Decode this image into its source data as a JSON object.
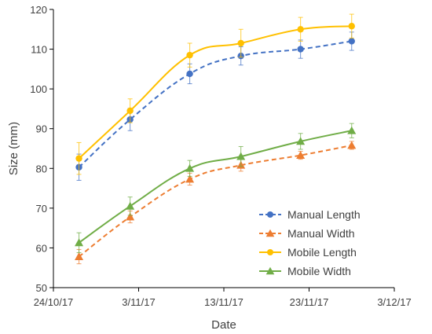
{
  "chart_data": {
    "type": "line",
    "title": "",
    "xlabel": "Date",
    "ylabel": "Size (mm)",
    "x_tick_labels": [
      "24/10/17",
      "3/11/17",
      "13/11/17",
      "23/11/17",
      "3/12/17"
    ],
    "x_tick_dates": [
      "2017-10-24",
      "2017-11-03",
      "2017-11-13",
      "2017-11-23",
      "2017-12-03"
    ],
    "y_ticks": [
      50,
      60,
      70,
      80,
      90,
      100,
      110,
      120
    ],
    "xlim": [
      "2017-10-24",
      "2017-12-03"
    ],
    "ylim": [
      50,
      120
    ],
    "grid": false,
    "legend_position": "bottom-right",
    "x": [
      "2017-10-27",
      "2017-11-02",
      "2017-11-09",
      "2017-11-15",
      "2017-11-22",
      "2017-11-28"
    ],
    "series": [
      {
        "name": "Manual Length",
        "color": "#4472C4",
        "line_style": "dashed",
        "marker": "circle",
        "values": [
          80.3,
          92.3,
          103.8,
          108.3,
          110.0,
          112.0
        ],
        "error": [
          3.3,
          2.8,
          2.5,
          2.3,
          2.3,
          2.3
        ]
      },
      {
        "name": "Manual Width",
        "color": "#ED7D31",
        "line_style": "dashed",
        "marker": "triangle",
        "values": [
          57.8,
          67.8,
          77.3,
          80.8,
          83.3,
          85.8
        ],
        "error": [
          1.8,
          1.5,
          1.5,
          1.5,
          1.0,
          1.0
        ]
      },
      {
        "name": "Mobile Length",
        "color": "#FFC000",
        "line_style": "solid",
        "marker": "circle",
        "values": [
          82.5,
          94.5,
          108.5,
          111.5,
          115.0,
          115.8
        ],
        "error": [
          4.0,
          3.0,
          3.0,
          3.5,
          3.0,
          3.0
        ]
      },
      {
        "name": "Mobile Width",
        "color": "#70AD47",
        "line_style": "solid",
        "marker": "triangle",
        "values": [
          61.3,
          70.5,
          80.0,
          83.0,
          86.8,
          89.5
        ],
        "error": [
          2.5,
          2.3,
          2.0,
          2.5,
          2.0,
          1.8
        ]
      }
    ]
  }
}
